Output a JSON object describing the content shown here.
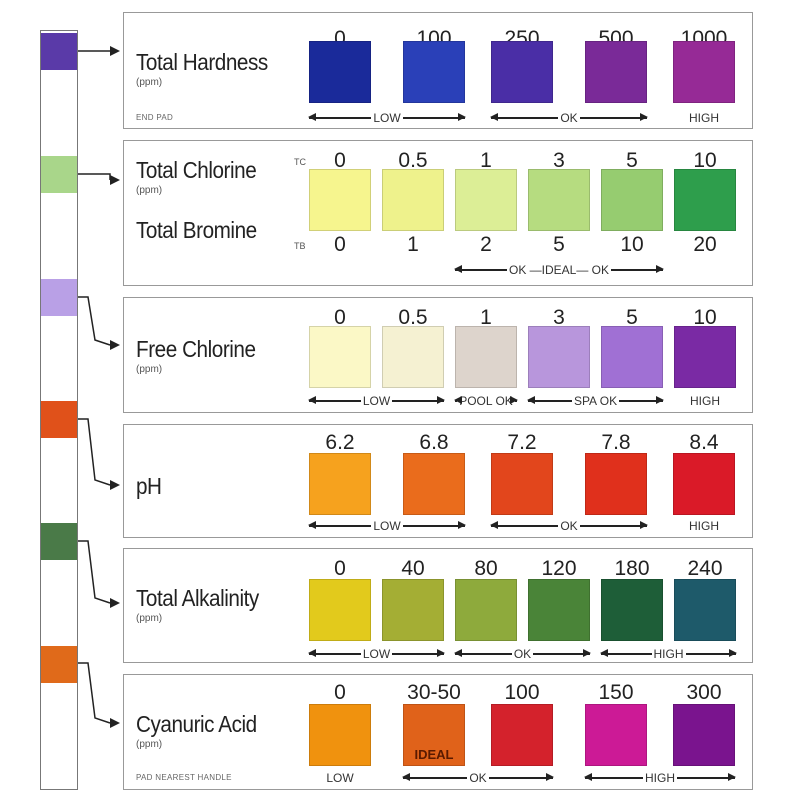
{
  "strip": {
    "pad_colors": [
      "#5a3aa8",
      "#a9d68a",
      "#b9a0e6",
      "#e0511a",
      "#4a7a48",
      "#e06a1a"
    ]
  },
  "panels": [
    {
      "title": "Total Hardness",
      "unit": "(ppm)",
      "footnote": "END PAD",
      "values": [
        "0",
        "100",
        "250",
        "500",
        "1000"
      ],
      "colors": [
        "#1a2a9a",
        "#2a40b8",
        "#4a2ea6",
        "#7a2a98",
        "#962a96"
      ],
      "ranges": [
        {
          "label": "LOW",
          "from": 0,
          "to": 1,
          "arrows": true
        },
        {
          "label": "OK",
          "from": 2,
          "to": 3,
          "arrows": true
        },
        {
          "label": "HIGH",
          "from": 4,
          "to": 4,
          "arrows": false
        }
      ]
    },
    {
      "title": "Total Chlorine",
      "title2": "Total Bromine",
      "unit": "(ppm)",
      "prefix_top": "TC",
      "prefix_bottom": "TB",
      "values": [
        "0",
        "0.5",
        "1",
        "3",
        "5",
        "10"
      ],
      "values_bottom": [
        "0",
        "1",
        "2",
        "5",
        "10",
        "20"
      ],
      "colors": [
        "#f6f58e",
        "#eef28c",
        "#dcee96",
        "#b6dc80",
        "#96cc70",
        "#2e9e4c"
      ],
      "ranges": [
        {
          "label": "OK —IDEAL— OK",
          "from": 2,
          "to": 4,
          "arrows": true
        }
      ]
    },
    {
      "title": "Free Chlorine",
      "unit": "(ppm)",
      "values": [
        "0",
        "0.5",
        "1",
        "3",
        "5",
        "10"
      ],
      "colors": [
        "#fbf8c6",
        "#f5f1d2",
        "#ddd4cc",
        "#b896dc",
        "#a070d4",
        "#7a2aa4"
      ],
      "ranges": [
        {
          "label": "LOW",
          "from": 0,
          "to": 1,
          "arrows": true
        },
        {
          "label": "POOL OK",
          "from": 2,
          "to": 2,
          "arrows": true
        },
        {
          "label": "SPA OK",
          "from": 3,
          "to": 4,
          "arrows": true
        },
        {
          "label": "HIGH",
          "from": 5,
          "to": 5,
          "arrows": false
        }
      ]
    },
    {
      "title": "pH",
      "values": [
        "6.2",
        "6.8",
        "7.2",
        "7.8",
        "8.4"
      ],
      "colors": [
        "#f6a21e",
        "#ea6c1c",
        "#e2461c",
        "#e0301c",
        "#da1a28"
      ],
      "ranges": [
        {
          "label": "LOW",
          "from": 0,
          "to": 1,
          "arrows": true
        },
        {
          "label": "OK",
          "from": 2,
          "to": 3,
          "arrows": true
        },
        {
          "label": "HIGH",
          "from": 4,
          "to": 4,
          "arrows": false
        }
      ]
    },
    {
      "title": "Total Alkalinity",
      "unit": "(ppm)",
      "values": [
        "0",
        "40",
        "80",
        "120",
        "180",
        "240"
      ],
      "colors": [
        "#e2ca1c",
        "#a4ae34",
        "#8eaa3c",
        "#4a8438",
        "#1e5e38",
        "#1e5a6a"
      ],
      "ranges": [
        {
          "label": "LOW",
          "from": 0,
          "to": 1,
          "arrows": true
        },
        {
          "label": "OK",
          "from": 2,
          "to": 3,
          "arrows": true
        },
        {
          "label": "HIGH",
          "from": 4,
          "to": 5,
          "arrows": true
        }
      ]
    },
    {
      "title": "Cyanuric Acid",
      "unit": "(ppm)",
      "footnote": "PAD NEAREST HANDLE",
      "values": [
        "0",
        "30-50",
        "100",
        "150",
        "300"
      ],
      "colors": [
        "#f0920e",
        "#e0621a",
        "#d4222c",
        "#cc1a96",
        "#7a148e"
      ],
      "swatch_label": {
        "index": 1,
        "text": "IDEAL"
      },
      "ranges": [
        {
          "label": "LOW",
          "from": 0,
          "to": 0,
          "arrows": false
        },
        {
          "label": "OK",
          "from": 1,
          "to": 2,
          "arrows": true
        },
        {
          "label": "HIGH",
          "from": 3,
          "to": 4,
          "arrows": true
        }
      ]
    }
  ]
}
